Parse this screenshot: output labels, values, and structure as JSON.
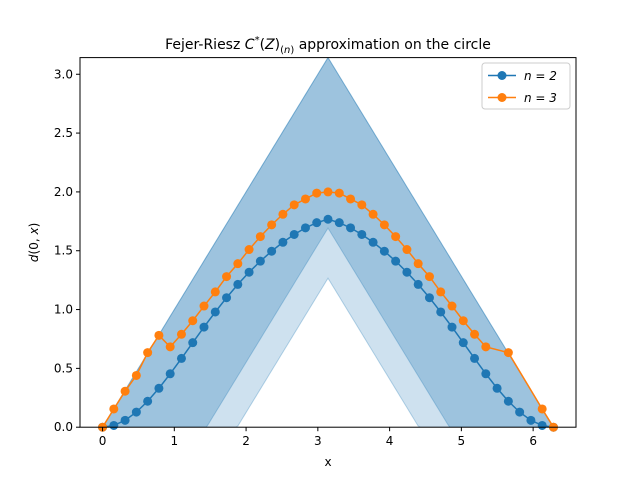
{
  "chart_data": {
    "type": "line",
    "title": "Fejer-Riesz C*(Z)(n) approximation on the circle",
    "xlabel": "x",
    "ylabel": "d(0, x)",
    "xlim": [
      -0.3142,
      6.5973
    ],
    "ylim": [
      0,
      3.1416
    ],
    "xticks": [
      0,
      1,
      2,
      3,
      4,
      5,
      6
    ],
    "yticks": [
      0.0,
      0.5,
      1.0,
      1.5,
      2.0,
      2.5,
      3.0
    ],
    "xtick_labels": [
      "0",
      "1",
      "2",
      "3",
      "4",
      "5",
      "6"
    ],
    "ytick_labels": [
      "0.0",
      "0.5",
      "1.0",
      "1.5",
      "2.0",
      "2.5",
      "3.0"
    ],
    "legend_position": "upper-right",
    "grid": false,
    "bands": [
      {
        "lower_peak": 1.2666,
        "upper_peak": 3.1416,
        "color": "#1f77b4",
        "opacity": 0.22
      },
      {
        "lower_peak": 1.6927,
        "upper_peak": 3.1416,
        "color": "#1f77b4",
        "opacity": 0.28
      }
    ],
    "series": [
      {
        "name": "n = 2",
        "color": "#1f77b4",
        "x": [
          0,
          0.1571,
          0.3142,
          0.4712,
          0.6283,
          0.7854,
          0.9425,
          1.0996,
          1.2566,
          1.4137,
          1.5708,
          1.7279,
          1.885,
          2.042,
          2.1991,
          2.3562,
          2.5133,
          2.6704,
          2.8274,
          2.9845,
          3.1416,
          3.2987,
          3.4558,
          3.6128,
          3.7699,
          3.927,
          4.0841,
          4.2412,
          4.3982,
          4.5553,
          4.7124,
          4.8695,
          5.0265,
          5.1836,
          5.3407,
          5.4978,
          5.6549,
          5.8119,
          5.969,
          6.1261,
          6.2832
        ],
        "y": [
          0.0,
          0.0149,
          0.0585,
          0.1283,
          0.2206,
          0.3307,
          0.4538,
          0.5847,
          0.7185,
          0.8511,
          0.9793,
          1.1006,
          1.2137,
          1.3174,
          1.4114,
          1.4961,
          1.5717,
          1.6382,
          1.6944,
          1.7385,
          1.7676,
          1.7385,
          1.6944,
          1.6382,
          1.5717,
          1.4961,
          1.4114,
          1.3174,
          1.2137,
          1.1006,
          0.9793,
          0.8511,
          0.7185,
          0.5847,
          0.4538,
          0.3307,
          0.2206,
          0.1283,
          0.0585,
          0.0149,
          0.0
        ]
      },
      {
        "name": "n = 3",
        "color": "#ff7f0e",
        "x": [
          0,
          0.1571,
          0.3142,
          0.4712,
          0.6283,
          0.7854,
          0.9425,
          1.0996,
          1.2566,
          1.4137,
          1.5708,
          1.7279,
          1.885,
          2.042,
          2.1991,
          2.3562,
          2.5133,
          2.6704,
          2.8274,
          2.9845,
          3.1416,
          3.2987,
          3.4558,
          3.6128,
          3.7699,
          3.927,
          4.0841,
          4.2412,
          4.3982,
          4.5553,
          4.7124,
          4.8695,
          5.0265,
          5.1836,
          5.3407,
          5.6549,
          6.1261,
          6.2832
        ],
        "y": [
          0.0,
          0.155,
          0.306,
          0.44,
          0.634,
          0.781,
          0.683,
          0.79,
          0.905,
          1.03,
          1.15,
          1.28,
          1.39,
          1.51,
          1.62,
          1.72,
          1.81,
          1.89,
          1.94,
          1.99,
          2.0,
          1.99,
          1.94,
          1.89,
          1.81,
          1.72,
          1.62,
          1.51,
          1.39,
          1.28,
          1.15,
          1.03,
          0.905,
          0.79,
          0.683,
          0.634,
          0.155,
          0.0
        ]
      }
    ]
  }
}
